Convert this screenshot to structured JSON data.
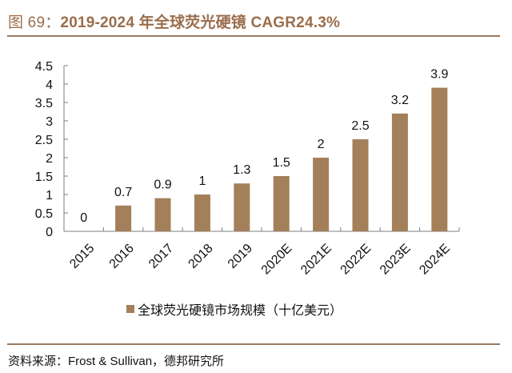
{
  "header": {
    "figure_label": "图 69：",
    "title_text": "2019-2024 年全球荧光硬镜 CAGR24.3%"
  },
  "source": "资料来源：Frost & Sullivan，德邦研究所",
  "colors": {
    "bar": "#a3805a",
    "title": "#9a6e4c",
    "rule": "#9a7a62",
    "axis": "#7f7f7f"
  },
  "chart_data": {
    "type": "bar",
    "title": "2019-2024 年全球荧光硬镜 CAGR24.3%",
    "xlabel": "",
    "ylabel": "",
    "categories": [
      "2015",
      "2016",
      "2017",
      "2018",
      "2019",
      "2020E",
      "2021E",
      "2022E",
      "2023E",
      "2024E"
    ],
    "series": [
      {
        "name": "全球荧光硬镜市场规模（十亿美元）",
        "values": [
          0,
          0.7,
          0.9,
          1,
          1.3,
          1.5,
          2,
          2.5,
          3.2,
          3.9
        ]
      }
    ],
    "value_labels": [
      "0",
      "0.7",
      "0.9",
      "1",
      "1.3",
      "1.5",
      "2",
      "2.5",
      "3.2",
      "3.9"
    ],
    "ylim": [
      0,
      4.5
    ],
    "yticks": [
      "0",
      "0.5",
      "1",
      "1.5",
      "2",
      "2.5",
      "3",
      "3.5",
      "4",
      "4.5"
    ],
    "ytick_values": [
      0,
      0.5,
      1,
      1.5,
      2,
      2.5,
      3,
      3.5,
      4,
      4.5
    ],
    "grid": false,
    "legend_position": "bottom",
    "x_label_rotation": "-45deg"
  }
}
